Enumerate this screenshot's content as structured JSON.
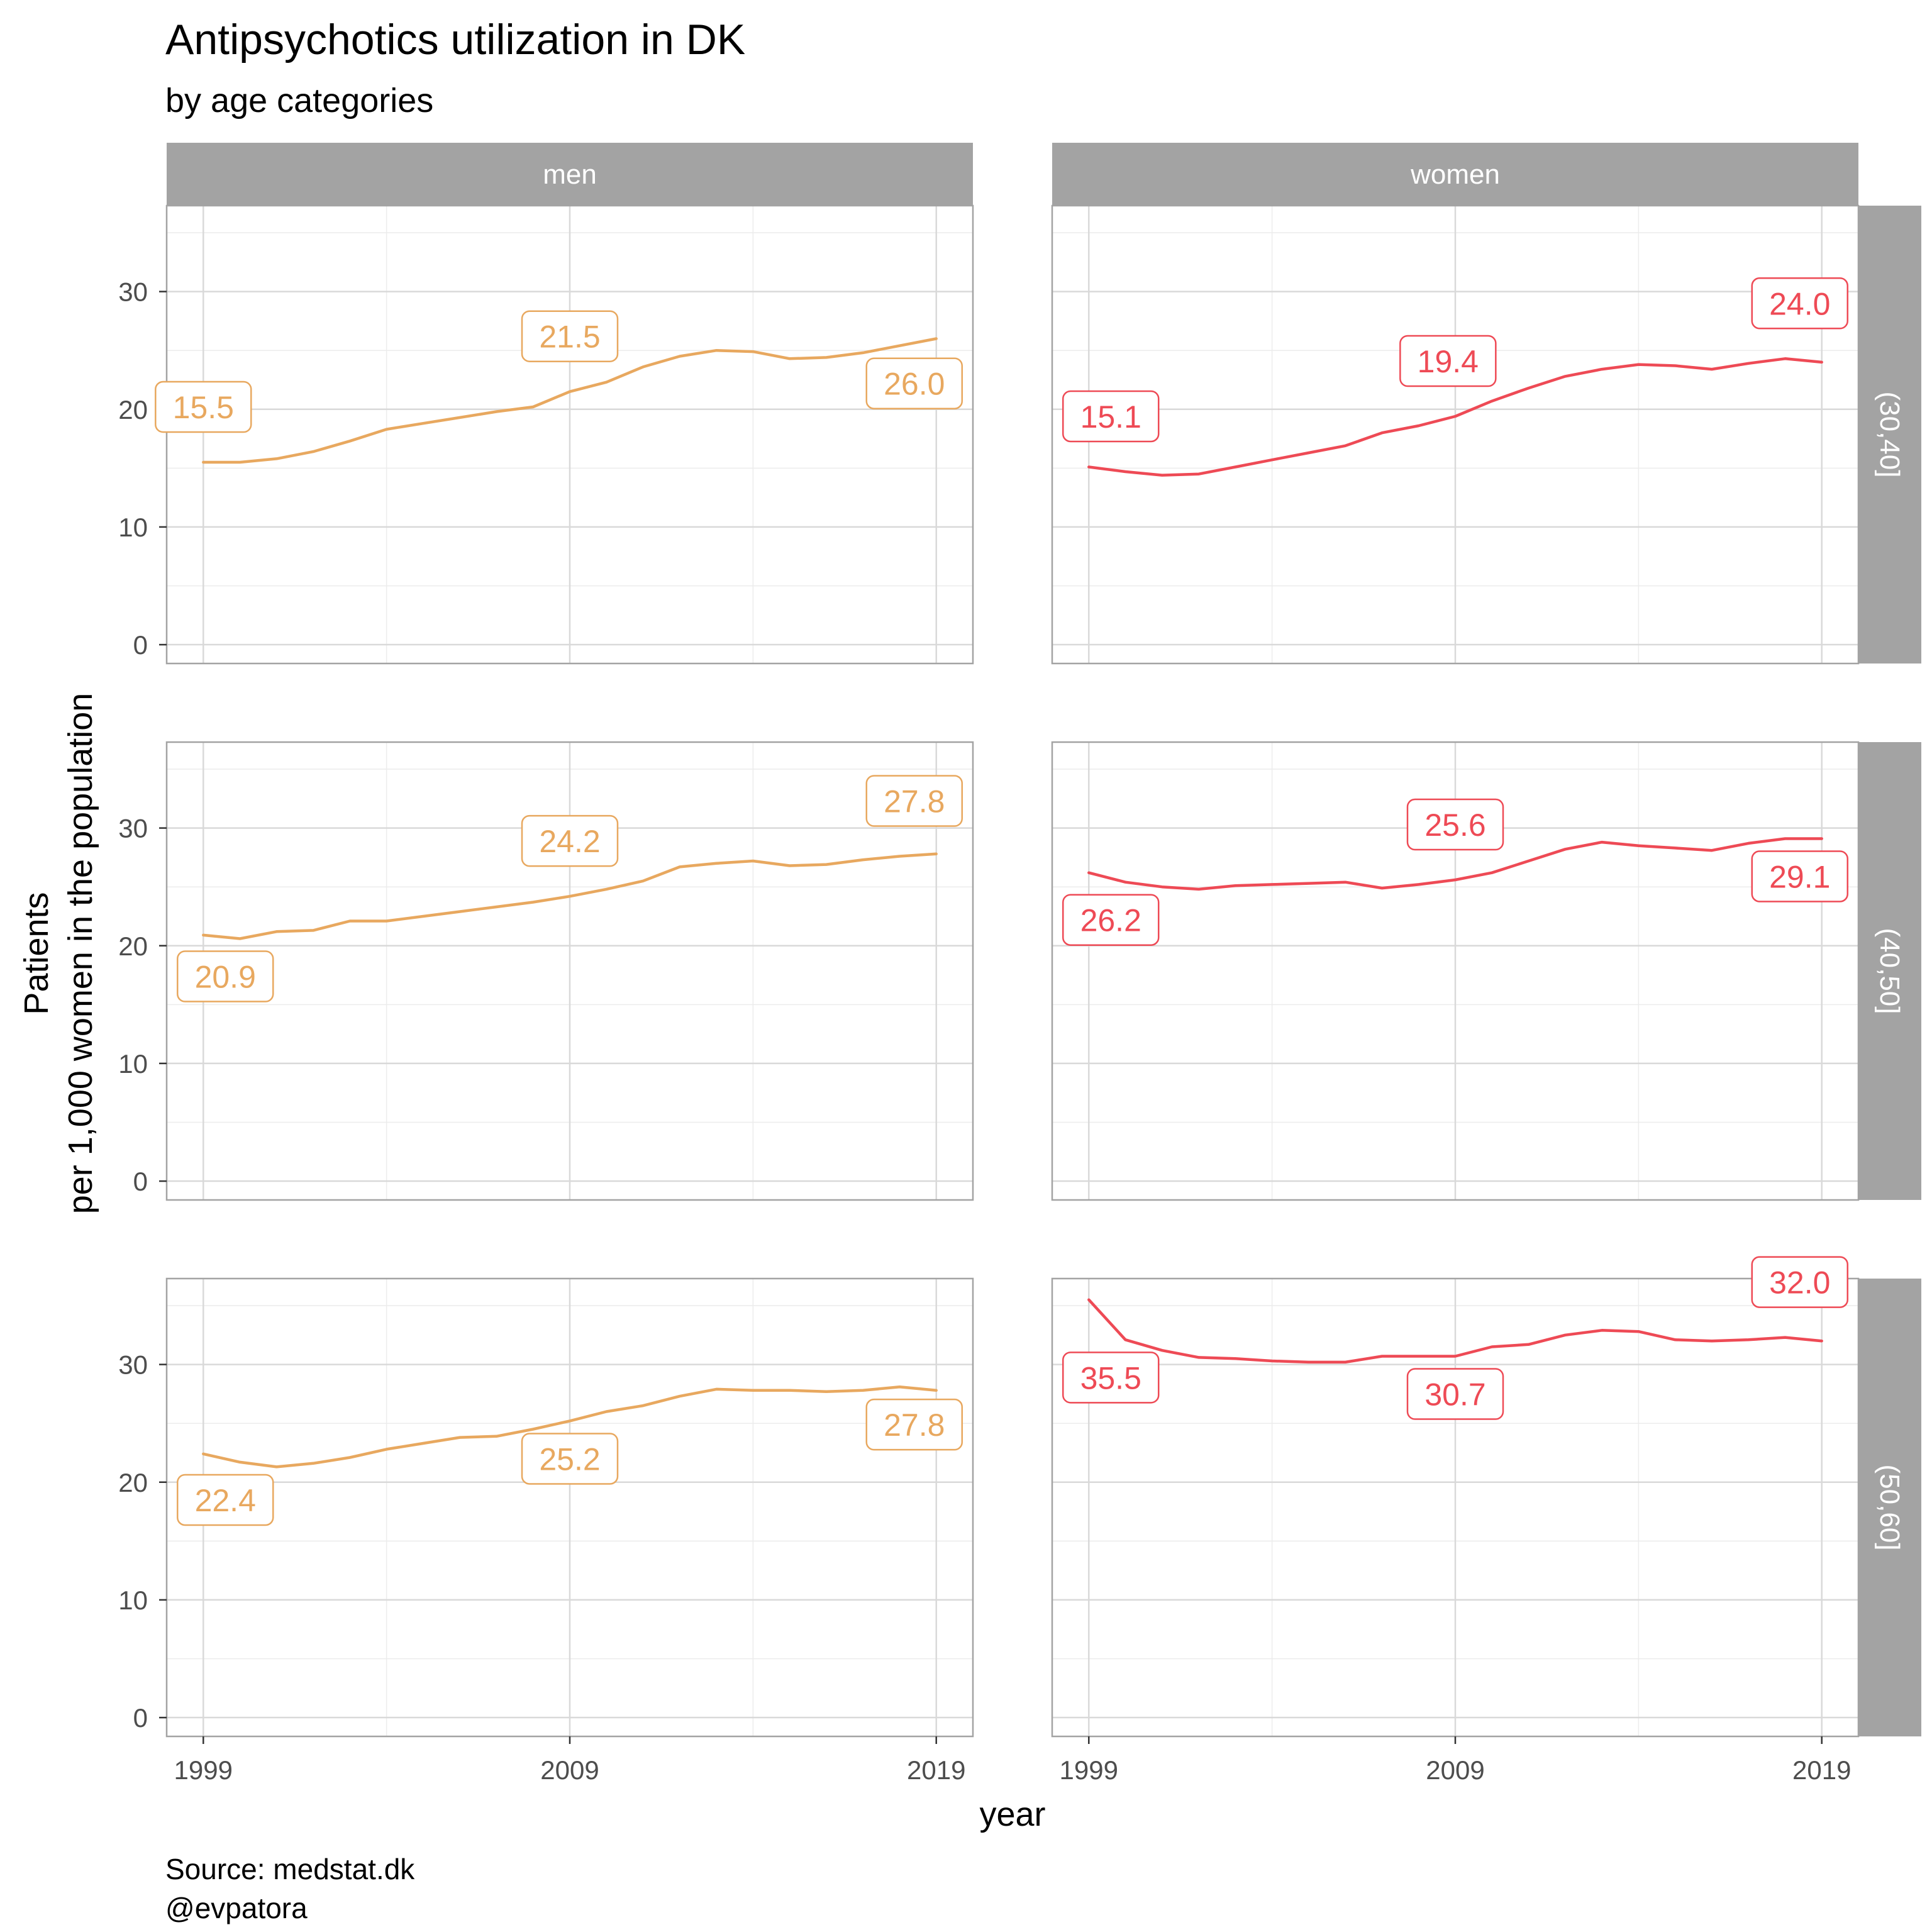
{
  "chart_data": {
    "type": "line",
    "title": "Antipsychotics utilization in DK",
    "subtitle": "by age categories",
    "xlabel": "year",
    "ylabel_lines": [
      "Patients",
      "per 1,000 women in the population"
    ],
    "caption_lines": [
      "Source: medstat.dk",
      "@evpatora"
    ],
    "xlim": [
      1998,
      2020
    ],
    "ylim": [
      -1.6,
      37.3
    ],
    "x_ticks": [
      1999,
      2009,
      2019
    ],
    "y_ticks": [
      0,
      10,
      20,
      30
    ],
    "columns": [
      "men",
      "women"
    ],
    "rows": [
      "(30,40]",
      "(40,50]",
      "(50,60]"
    ],
    "colors": {
      "men": "#E8A85F",
      "women": "#EE4A55"
    },
    "x": [
      1999,
      2000,
      2001,
      2002,
      2003,
      2004,
      2005,
      2006,
      2007,
      2008,
      2009,
      2010,
      2011,
      2012,
      2013,
      2014,
      2015,
      2016,
      2017,
      2018,
      2019
    ],
    "panels": [
      {
        "column": "men",
        "row": "(30,40]",
        "values": [
          15.5,
          15.5,
          15.8,
          16.4,
          17.3,
          18.3,
          18.8,
          19.3,
          19.8,
          20.2,
          21.5,
          22.3,
          23.6,
          24.5,
          25.0,
          24.9,
          24.3,
          24.4,
          24.8,
          25.4,
          26.0
        ],
        "labels": [
          {
            "x": 1999,
            "text": "15.5",
            "pos": "above"
          },
          {
            "x": 2009,
            "text": "21.5",
            "pos": "above"
          },
          {
            "x": 2018.4,
            "text": "26.0",
            "pos": "below"
          }
        ]
      },
      {
        "column": "women",
        "row": "(30,40]",
        "values": [
          15.1,
          14.7,
          14.4,
          14.5,
          15.1,
          15.7,
          16.3,
          16.9,
          18.0,
          18.6,
          19.4,
          20.7,
          21.8,
          22.8,
          23.4,
          23.8,
          23.7,
          23.4,
          23.9,
          24.3,
          24.0
        ],
        "labels": [
          {
            "x": 1999.6,
            "text": "15.1",
            "pos": "above"
          },
          {
            "x": 2008.8,
            "text": "19.4",
            "pos": "above"
          },
          {
            "x": 2018.4,
            "text": "24.0",
            "pos": "above"
          }
        ]
      },
      {
        "column": "men",
        "row": "(40,50]",
        "values": [
          20.9,
          20.6,
          21.2,
          21.3,
          22.1,
          22.1,
          22.5,
          22.9,
          23.3,
          23.7,
          24.2,
          24.8,
          25.5,
          26.7,
          27.0,
          27.2,
          26.8,
          26.9,
          27.3,
          27.6,
          27.8
        ],
        "labels": [
          {
            "x": 1999.6,
            "text": "20.9",
            "pos": "below"
          },
          {
            "x": 2009,
            "text": "24.2",
            "pos": "above"
          },
          {
            "x": 2018.4,
            "text": "27.8",
            "pos": "above"
          }
        ]
      },
      {
        "column": "women",
        "row": "(40,50]",
        "values": [
          26.2,
          25.4,
          25.0,
          24.8,
          25.1,
          25.2,
          25.3,
          25.4,
          24.9,
          25.2,
          25.6,
          26.2,
          27.2,
          28.2,
          28.8,
          28.5,
          28.3,
          28.1,
          28.7,
          29.1,
          29.1
        ],
        "labels": [
          {
            "x": 1999.6,
            "text": "26.2",
            "pos": "below"
          },
          {
            "x": 2009,
            "text": "25.6",
            "pos": "above"
          },
          {
            "x": 2018.4,
            "text": "29.1",
            "pos": "below"
          }
        ]
      },
      {
        "column": "men",
        "row": "(50,60]",
        "values": [
          22.4,
          21.7,
          21.3,
          21.6,
          22.1,
          22.8,
          23.3,
          23.8,
          23.9,
          24.5,
          25.2,
          26.0,
          26.5,
          27.3,
          27.9,
          27.8,
          27.8,
          27.7,
          27.8,
          28.1,
          27.8
        ],
        "labels": [
          {
            "x": 1999.6,
            "text": "22.4",
            "pos": "below"
          },
          {
            "x": 2009,
            "text": "25.2",
            "pos": "below"
          },
          {
            "x": 2018.4,
            "text": "27.8",
            "pos": "below"
          }
        ]
      },
      {
        "column": "women",
        "row": "(50,60]",
        "values": [
          35.5,
          32.1,
          31.2,
          30.6,
          30.5,
          30.3,
          30.2,
          30.2,
          30.7,
          30.7,
          30.7,
          31.5,
          31.7,
          32.5,
          32.9,
          32.8,
          32.1,
          32.0,
          32.1,
          32.3,
          32.0
        ],
        "labels": [
          {
            "x": 1999.6,
            "text": "35.5",
            "pos": "below"
          },
          {
            "x": 2009,
            "text": "30.7",
            "pos": "below"
          },
          {
            "x": 2018.4,
            "text": "32.0",
            "pos": "above"
          }
        ]
      }
    ]
  }
}
